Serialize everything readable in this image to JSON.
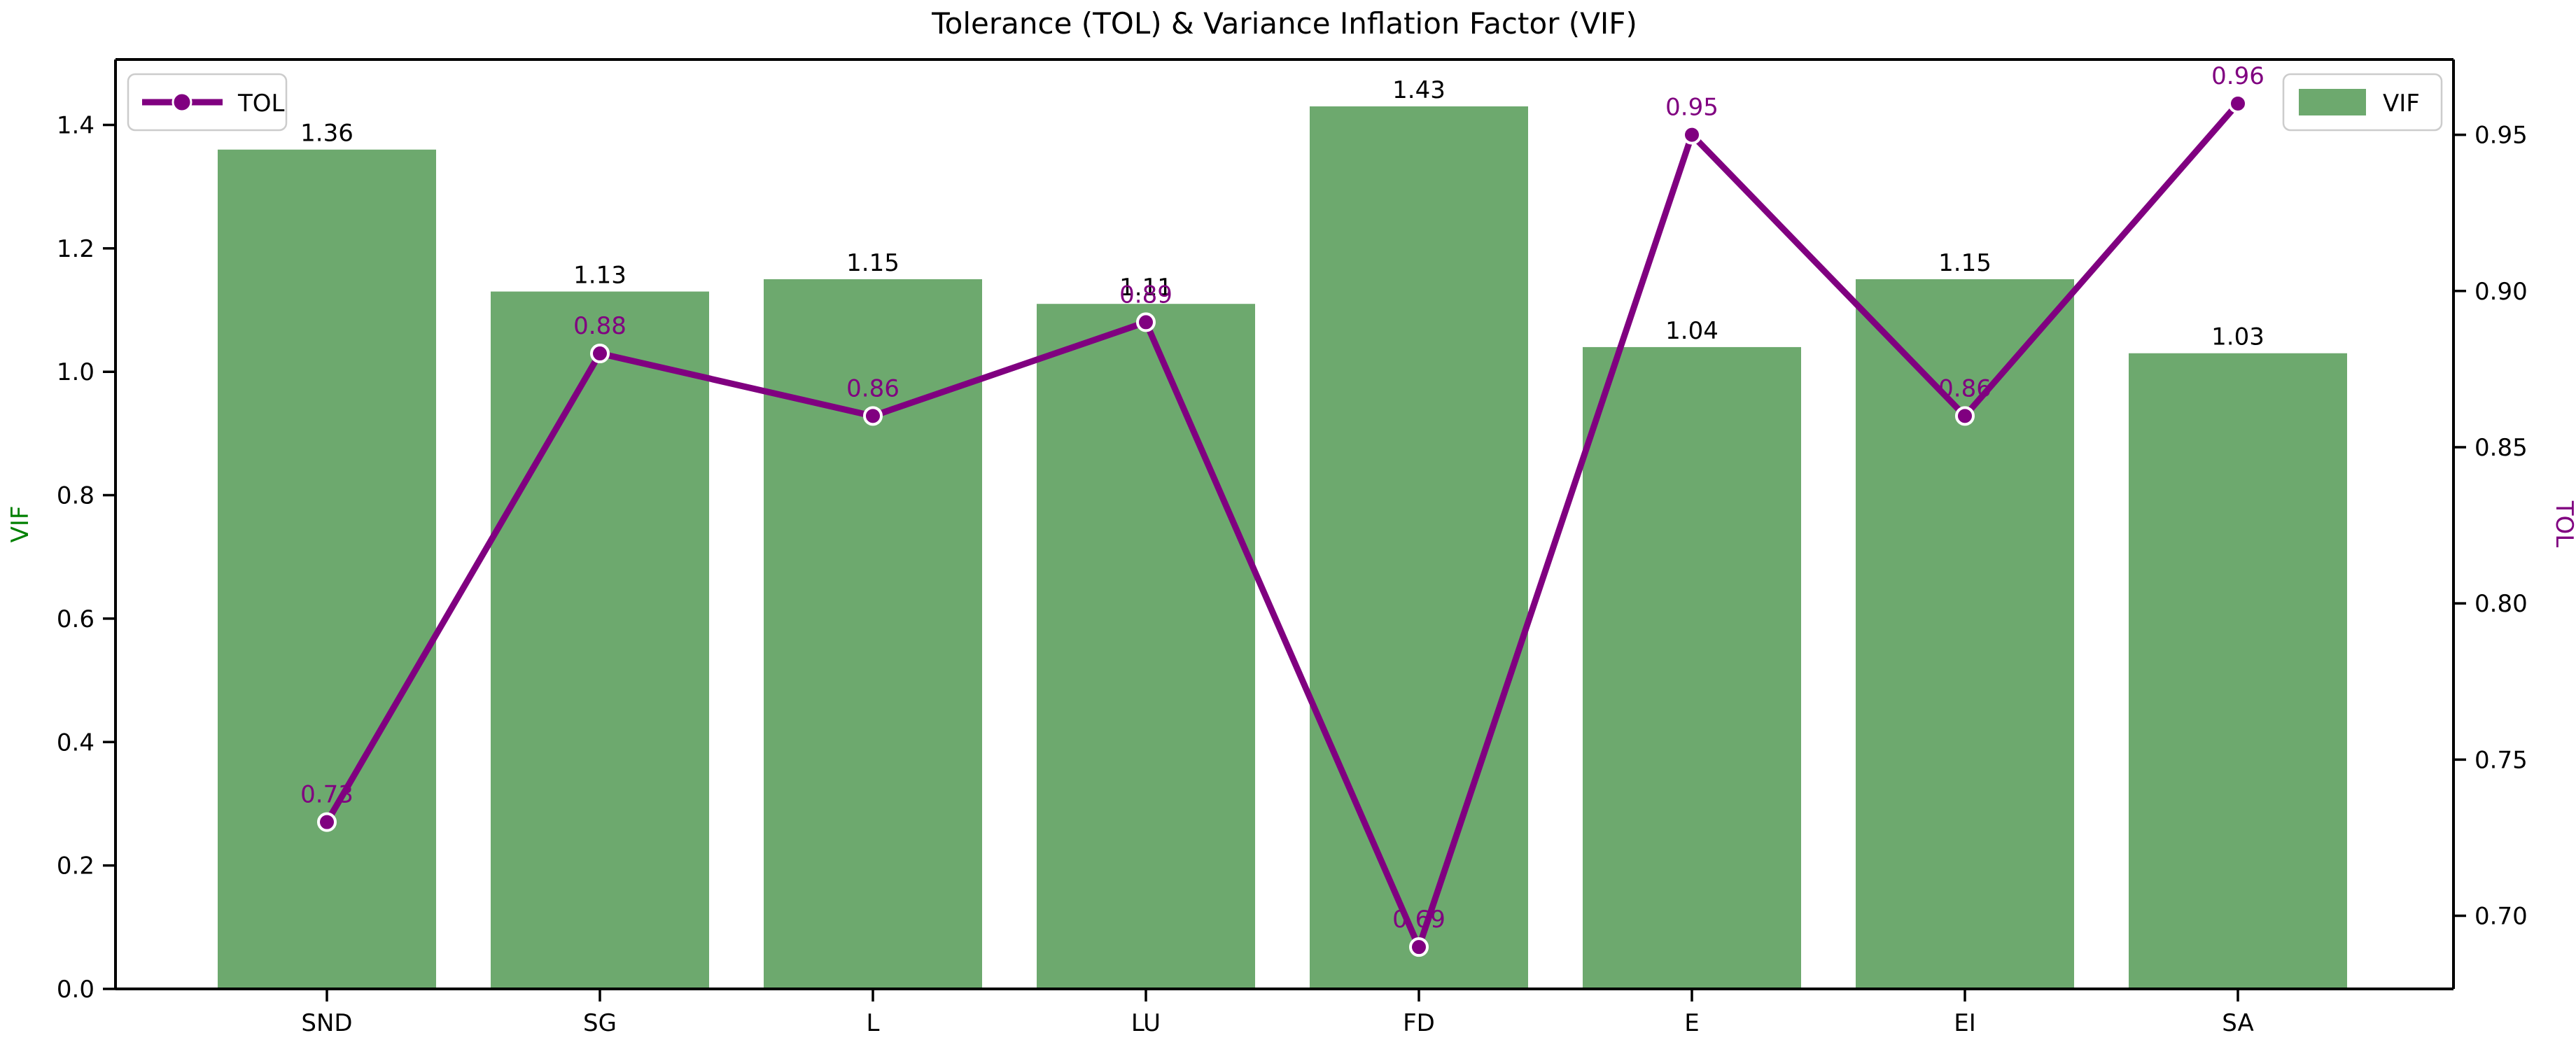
{
  "chart_data": {
    "type": "bar",
    "subtype": "bar+line-dual-axis",
    "title": "Tolerance (TOL) & Variance Inflation Factor (VIF)",
    "categories": [
      "SND",
      "SG",
      "L",
      "LU",
      "FD",
      "E",
      "EI",
      "SA"
    ],
    "series": [
      {
        "name": "VIF",
        "type": "bar",
        "axis": "left",
        "values": [
          1.36,
          1.13,
          1.15,
          1.11,
          1.43,
          1.04,
          1.15,
          1.03
        ],
        "labels": [
          "1.36",
          "1.13",
          "1.15",
          "1.11",
          "1.43",
          "1.04",
          "1.15",
          "1.03"
        ],
        "color": "#6da96e"
      },
      {
        "name": "TOL",
        "type": "line",
        "axis": "right",
        "values": [
          0.73,
          0.88,
          0.86,
          0.89,
          0.69,
          0.95,
          0.86,
          0.96
        ],
        "labels": [
          "0.73",
          "0.88",
          "0.86",
          "0.89",
          "0.69",
          "0.95",
          "0.86",
          "0.96"
        ],
        "color": "#800080",
        "marker": "circle-white-edge"
      }
    ],
    "left_axis": {
      "label": "VIF",
      "label_color": "#008000",
      "tick_labels": [
        "0.0",
        "0.2",
        "0.4",
        "0.6",
        "0.8",
        "1.0",
        "1.2",
        "1.4"
      ],
      "tick_values": [
        0.0,
        0.2,
        0.4,
        0.6,
        0.8,
        1.0,
        1.2,
        1.4
      ],
      "range": [
        0,
        1.506
      ]
    },
    "right_axis": {
      "label": "TOL",
      "label_color": "#800080",
      "tick_labels": [
        "0.70",
        "0.75",
        "0.80",
        "0.85",
        "0.90",
        "0.95"
      ],
      "tick_values": [
        0.7,
        0.75,
        0.8,
        0.85,
        0.9,
        0.95
      ],
      "range": [
        0.6766,
        0.9741
      ]
    },
    "legend": {
      "tol": "TOL",
      "vif": "VIF",
      "tol_position": "upper-left",
      "vif_position": "upper-right",
      "border_color": "#cccccc"
    },
    "grid": false,
    "text_color": "#000000",
    "bar_label_color": "#000000",
    "point_label_color": "#800080"
  }
}
